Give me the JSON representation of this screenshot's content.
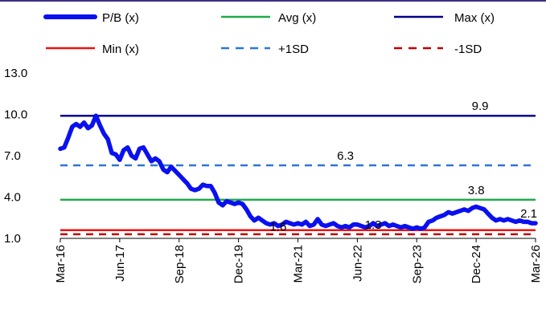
{
  "chart_data": {
    "type": "line",
    "x_ticks": [
      "Mar-16",
      "Jun-17",
      "Sep-18",
      "Dec-19",
      "Mar-21",
      "Jun-22",
      "Sep-23",
      "Dec-24",
      "Mar-26"
    ],
    "y_ticks": [
      "13.0",
      "10.0",
      "7.0",
      "4.0",
      "1.0"
    ],
    "ylim": [
      1.0,
      13.0
    ],
    "grid": false,
    "legend_position": "top",
    "series": [
      {
        "name": "P/B (x)",
        "color": "#0a10ee",
        "style": "thick-solid",
        "points": [
          [
            "2016-03",
            7.5
          ],
          [
            "2016-04",
            7.6
          ],
          [
            "2016-05",
            8.3
          ],
          [
            "2016-06",
            9.1
          ],
          [
            "2016-07",
            9.3
          ],
          [
            "2016-08",
            9.1
          ],
          [
            "2016-09",
            9.4
          ],
          [
            "2016-10",
            9.0
          ],
          [
            "2016-11",
            9.2
          ],
          [
            "2016-12",
            9.9
          ],
          [
            "2017-01",
            9.2
          ],
          [
            "2017-02",
            8.6
          ],
          [
            "2017-03",
            8.2
          ],
          [
            "2017-04",
            7.2
          ],
          [
            "2017-05",
            7.1
          ],
          [
            "2017-06",
            6.7
          ],
          [
            "2017-07",
            7.4
          ],
          [
            "2017-08",
            7.6
          ],
          [
            "2017-09",
            7.0
          ],
          [
            "2017-10",
            6.8
          ],
          [
            "2017-11",
            7.5
          ],
          [
            "2017-12",
            7.6
          ],
          [
            "2018-01",
            7.1
          ],
          [
            "2018-02",
            6.6
          ],
          [
            "2018-03",
            6.8
          ],
          [
            "2018-04",
            6.6
          ],
          [
            "2018-05",
            6.0
          ],
          [
            "2018-06",
            5.8
          ],
          [
            "2018-07",
            6.2
          ],
          [
            "2018-08",
            5.9
          ],
          [
            "2018-09",
            5.6
          ],
          [
            "2018-10",
            5.3
          ],
          [
            "2018-11",
            5.0
          ],
          [
            "2018-12",
            4.6
          ],
          [
            "2019-01",
            4.5
          ],
          [
            "2019-02",
            4.6
          ],
          [
            "2019-03",
            4.9
          ],
          [
            "2019-04",
            4.8
          ],
          [
            "2019-05",
            4.8
          ],
          [
            "2019-06",
            4.3
          ],
          [
            "2019-07",
            3.6
          ],
          [
            "2019-08",
            3.4
          ],
          [
            "2019-09",
            3.7
          ],
          [
            "2019-10",
            3.6
          ],
          [
            "2019-11",
            3.5
          ],
          [
            "2019-12",
            3.6
          ],
          [
            "2020-01",
            3.5
          ],
          [
            "2020-02",
            3.1
          ],
          [
            "2020-03",
            2.6
          ],
          [
            "2020-04",
            2.3
          ],
          [
            "2020-05",
            2.5
          ],
          [
            "2020-06",
            2.3
          ],
          [
            "2020-07",
            2.1
          ],
          [
            "2020-08",
            2.0
          ],
          [
            "2020-09",
            2.1
          ],
          [
            "2020-10",
            1.9
          ],
          [
            "2020-11",
            2.0
          ],
          [
            "2020-12",
            2.2
          ],
          [
            "2021-01",
            2.1
          ],
          [
            "2021-02",
            2.0
          ],
          [
            "2021-03",
            2.1
          ],
          [
            "2021-04",
            2.0
          ],
          [
            "2021-05",
            2.2
          ],
          [
            "2021-06",
            1.9
          ],
          [
            "2021-07",
            2.0
          ],
          [
            "2021-08",
            2.4
          ],
          [
            "2021-09",
            2.0
          ],
          [
            "2021-10",
            1.9
          ],
          [
            "2021-11",
            2.0
          ],
          [
            "2021-12",
            2.1
          ],
          [
            "2022-01",
            1.9
          ],
          [
            "2022-02",
            1.8
          ],
          [
            "2022-03",
            1.9
          ],
          [
            "2022-04",
            1.8
          ],
          [
            "2022-05",
            2.0
          ],
          [
            "2022-06",
            2.0
          ],
          [
            "2022-07",
            1.9
          ],
          [
            "2022-08",
            1.8
          ],
          [
            "2022-09",
            1.9
          ],
          [
            "2022-10",
            2.1
          ],
          [
            "2022-11",
            1.9
          ],
          [
            "2022-12",
            2.0
          ],
          [
            "2023-01",
            2.1
          ],
          [
            "2023-02",
            1.9
          ],
          [
            "2023-03",
            2.0
          ],
          [
            "2023-04",
            1.9
          ],
          [
            "2023-05",
            1.8
          ],
          [
            "2023-06",
            1.9
          ],
          [
            "2023-07",
            1.8
          ],
          [
            "2023-08",
            1.7
          ],
          [
            "2023-09",
            1.8
          ],
          [
            "2023-10",
            1.7
          ],
          [
            "2023-11",
            1.8
          ],
          [
            "2023-12",
            2.2
          ],
          [
            "2024-01",
            2.3
          ],
          [
            "2024-02",
            2.5
          ],
          [
            "2024-03",
            2.6
          ],
          [
            "2024-04",
            2.7
          ],
          [
            "2024-05",
            2.9
          ],
          [
            "2024-06",
            2.8
          ],
          [
            "2024-07",
            2.9
          ],
          [
            "2024-08",
            3.0
          ],
          [
            "2024-09",
            3.1
          ],
          [
            "2024-10",
            3.0
          ],
          [
            "2024-11",
            3.2
          ],
          [
            "2024-12",
            3.3
          ],
          [
            "2025-01",
            3.2
          ],
          [
            "2025-02",
            3.1
          ],
          [
            "2025-03",
            2.8
          ],
          [
            "2025-04",
            2.5
          ],
          [
            "2025-05",
            2.3
          ],
          [
            "2025-06",
            2.4
          ],
          [
            "2025-07",
            2.3
          ],
          [
            "2025-08",
            2.4
          ],
          [
            "2025-09",
            2.3
          ],
          [
            "2025-10",
            2.2
          ],
          [
            "2025-11",
            2.3
          ],
          [
            "2025-12",
            2.2
          ],
          [
            "2026-01",
            2.2
          ],
          [
            "2026-02",
            2.1
          ],
          [
            "2026-03",
            2.1
          ]
        ]
      },
      {
        "name": "Avg (x)",
        "color": "#1fab4b",
        "style": "solid",
        "value": 3.8
      },
      {
        "name": "Max (x)",
        "color": "#00008b",
        "style": "solid",
        "value": 9.9
      },
      {
        "name": "Min (x)",
        "color": "#ee1111",
        "style": "solid",
        "value": 1.6
      },
      {
        "name": "+1SD",
        "color": "#2e75d6",
        "style": "dashed",
        "value": 6.3
      },
      {
        "name": "-1SD",
        "color": "#c00000",
        "style": "dashed",
        "value": 1.3
      }
    ],
    "annotations": [
      {
        "text": "9.9",
        "x": "2025-01",
        "y": 9.9
      },
      {
        "text": "6.3",
        "x": "2022-03",
        "y": 6.3
      },
      {
        "text": "3.8",
        "x": "2024-12",
        "y": 3.8
      },
      {
        "text": "2.1",
        "x": "2026-03",
        "y": 2.1
      },
      {
        "text": "1.6",
        "x": "2020-10",
        "y": 1.6
      },
      {
        "text": "1.3",
        "x": "2022-10",
        "y": 1.3
      }
    ]
  }
}
